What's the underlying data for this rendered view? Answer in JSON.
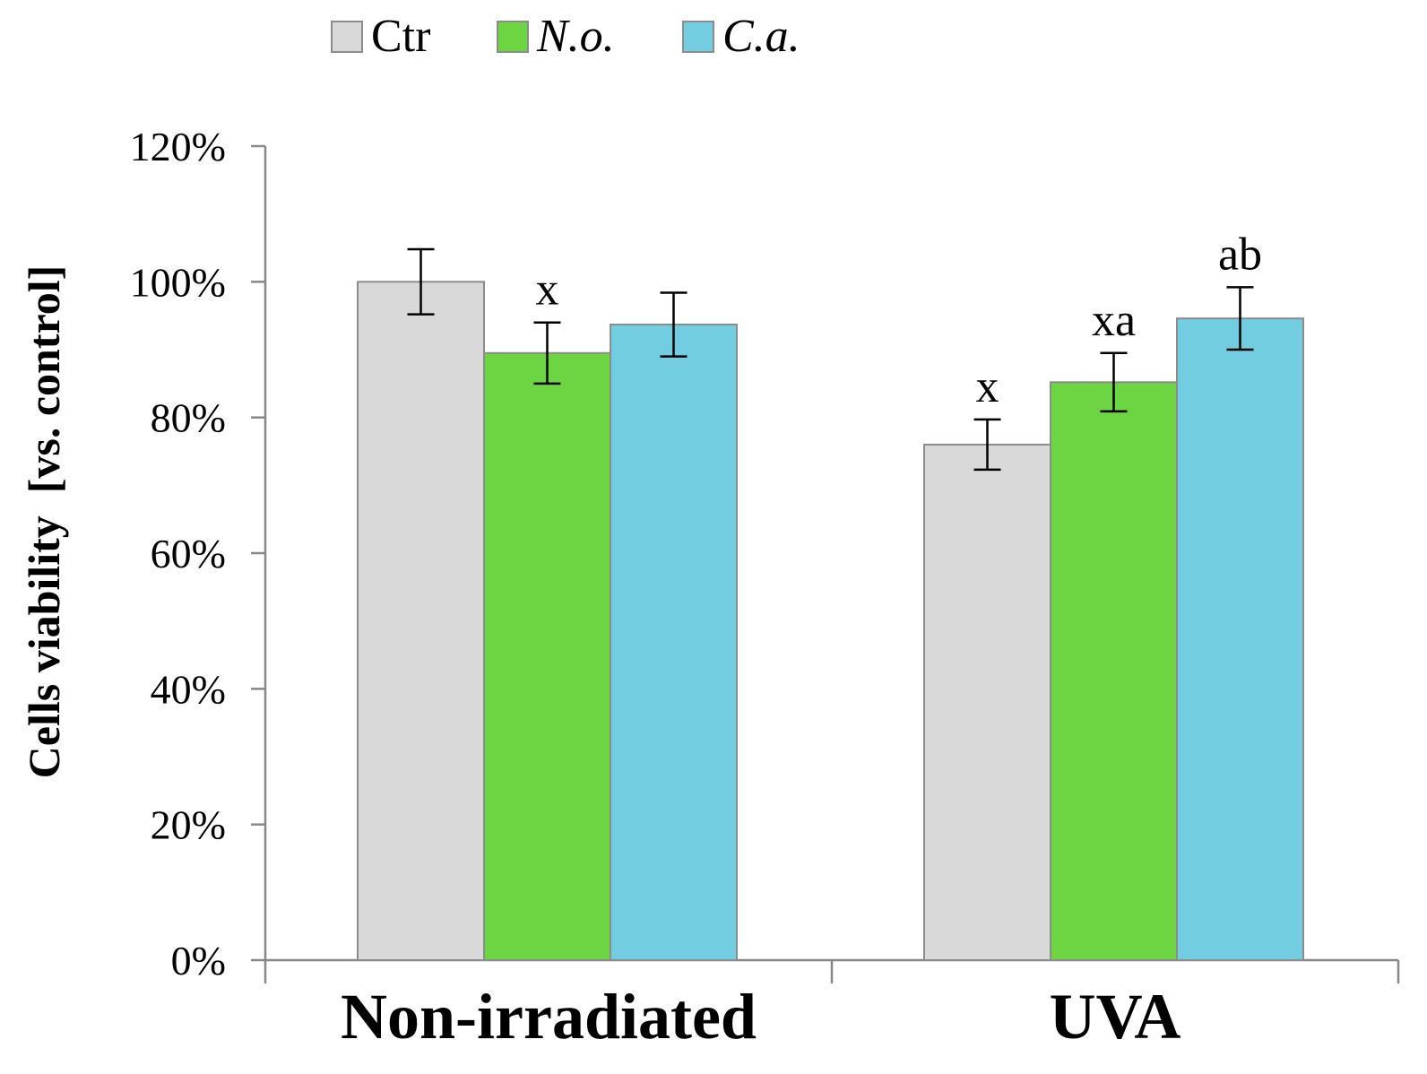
{
  "chart_data": {
    "type": "bar",
    "title": "",
    "xlabel": "",
    "ylabel": "Cells viability  [vs. control]",
    "ylim": [
      0,
      1.2
    ],
    "yticks": [
      0,
      0.2,
      0.4,
      0.6,
      0.8,
      1.0,
      1.2
    ],
    "ytick_labels": [
      "0%",
      "20%",
      "40%",
      "60%",
      "80%",
      "100%",
      "120%"
    ],
    "categories": [
      "Non-irradiated",
      "UVA"
    ],
    "legend_position": "top-left",
    "grid": false,
    "series": [
      {
        "name": "Ctr",
        "italic": false,
        "color": "#d9d9d9",
        "values": [
          1.0,
          0.76
        ],
        "errors": [
          0.048,
          0.037
        ],
        "annotations": [
          "",
          "x"
        ]
      },
      {
        "name": "N.o.",
        "italic": true,
        "color": "#6dd442",
        "values": [
          0.895,
          0.852
        ],
        "errors": [
          0.045,
          0.043
        ],
        "annotations": [
          "x",
          "xa"
        ]
      },
      {
        "name": "C.a.",
        "italic": true,
        "color": "#72cde0",
        "values": [
          0.937,
          0.946
        ],
        "errors": [
          0.047,
          0.046
        ],
        "annotations": [
          "",
          "ab"
        ]
      }
    ]
  }
}
